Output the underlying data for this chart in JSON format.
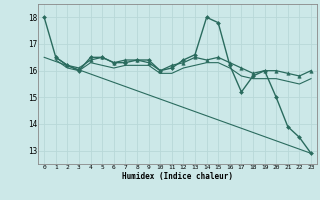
{
  "xlabel": "Humidex (Indice chaleur)",
  "bg_color": "#cce8e8",
  "line_color": "#2a6b5e",
  "grid_color": "#b0d4d4",
  "x_ticks": [
    0,
    1,
    2,
    3,
    4,
    5,
    6,
    7,
    8,
    9,
    10,
    11,
    12,
    13,
    14,
    15,
    16,
    17,
    18,
    19,
    20,
    21,
    22,
    23
  ],
  "ylim": [
    12.5,
    18.5
  ],
  "yticks": [
    13,
    14,
    15,
    16,
    17,
    18
  ],
  "series": [
    {
      "x": [
        0,
        1,
        2,
        3,
        4,
        5,
        6,
        7,
        8,
        9,
        10,
        11,
        12,
        13,
        14,
        15,
        16,
        17,
        18,
        19,
        20,
        21,
        22,
        23
      ],
      "y": [
        18.0,
        16.5,
        16.2,
        16.0,
        16.5,
        16.5,
        16.3,
        16.3,
        16.4,
        16.4,
        16.0,
        16.1,
        16.4,
        16.6,
        18.0,
        17.8,
        16.2,
        15.2,
        15.8,
        16.0,
        15.0,
        13.9,
        13.5,
        12.9
      ],
      "marker": "D",
      "markersize": 2.0,
      "linewidth": 1.0
    },
    {
      "x": [
        1,
        2,
        3,
        4,
        5,
        6,
        7,
        8,
        9,
        10,
        11,
        12,
        13,
        14,
        15,
        16,
        17,
        18,
        19,
        20,
        21,
        22,
        23
      ],
      "y": [
        16.5,
        16.2,
        16.1,
        16.4,
        16.5,
        16.3,
        16.4,
        16.4,
        16.3,
        16.0,
        16.2,
        16.3,
        16.5,
        16.4,
        16.5,
        16.3,
        16.1,
        15.9,
        16.0,
        16.0,
        15.9,
        15.8,
        16.0
      ],
      "marker": "^",
      "markersize": 2.5,
      "linewidth": 0.9
    },
    {
      "x": [
        1,
        2,
        3,
        4,
        5,
        6,
        7,
        8,
        9,
        10,
        11,
        12,
        13,
        14,
        15,
        16,
        17,
        18,
        19,
        20,
        21,
        22,
        23
      ],
      "y": [
        16.4,
        16.1,
        16.0,
        16.3,
        16.2,
        16.1,
        16.2,
        16.2,
        16.2,
        15.9,
        15.9,
        16.1,
        16.2,
        16.3,
        16.3,
        16.1,
        15.8,
        15.7,
        15.7,
        15.7,
        15.6,
        15.5,
        15.7
      ],
      "marker": null,
      "markersize": 0,
      "linewidth": 0.8
    },
    {
      "x": [
        0,
        23
      ],
      "y": [
        16.5,
        12.9
      ],
      "marker": null,
      "markersize": 0,
      "linewidth": 0.8
    }
  ]
}
